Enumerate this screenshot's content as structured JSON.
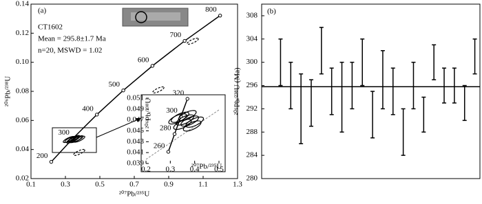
{
  "chart_data": [
    {
      "type": "concordia",
      "annotations": [
        "(a)",
        "CT1602",
        "Mean = 295.8±1.7 Ma",
        "n=20, MSWD = 1.02"
      ],
      "xlabel": "²⁰⁷Pb/²³⁵U",
      "ylabel": "²⁰⁶Pb/²³⁸U",
      "xlim": [
        0.1,
        1.3
      ],
      "xticks": [
        0.1,
        0.3,
        0.5,
        0.7,
        0.9,
        1.1,
        1.3
      ],
      "ylim": [
        0.02,
        0.14
      ],
      "yticks": [
        0.02,
        0.04,
        0.06,
        0.08,
        {
          "value": 0.1,
          "label": "0.10"
        },
        0.12,
        0.14
      ],
      "series": [
        {
          "x": [
            0.2177,
            0.3437,
            0.4828,
            0.6362,
            0.8056,
            0.9925,
            1.1987
          ],
          "y": [
            0.03151,
            0.04764,
            0.06402,
            0.08065,
            0.09754,
            0.1147,
            0.13213
          ],
          "labels": [
            200,
            300,
            400,
            500,
            600,
            700,
            800
          ],
          "color": "#000000",
          "line": true
        },
        {
          "x": [
            0.33,
            0.35,
            0.36,
            0.34,
            0.37,
            0.32,
            0.35,
            0.38
          ],
          "y": [
            0.047,
            0.0472,
            0.0468,
            0.0465,
            0.0474,
            0.0469,
            0.0476,
            0.0471
          ],
          "color": "#000000"
        },
        {
          "x": [
            0.84,
            1.04,
            0.38
          ],
          "y": [
            0.081,
            0.1145,
            0.038
          ],
          "color": "#000000",
          "dashed": true
        }
      ]
    },
    {
      "type": "concordia",
      "xlabel": "²⁰⁷Pb/²³⁵U",
      "ylabel": "²⁰⁶Pb/²³⁸U",
      "xlim": [
        0.2,
        0.5
      ],
      "xticks": [
        0.2,
        0.3,
        0.4,
        0.5
      ],
      "ylim": [
        0.039,
        0.051
      ],
      "yticks": [
        0.039,
        0.041,
        0.043,
        0.045,
        0.047,
        0.049,
        0.051
      ],
      "series": [
        {
          "x": [
            0.2918,
            0.3175,
            0.3437,
            0.3705
          ],
          "y": [
            0.04115,
            0.04441,
            0.04764,
            0.05089
          ],
          "labels": [
            260,
            280,
            300,
            320
          ],
          "color": "#000000",
          "line": true
        },
        {
          "x": [
            0.34,
            0.36,
            0.38,
            0.35,
            0.4,
            0.37,
            0.33,
            0.39
          ],
          "y": [
            0.0475,
            0.047,
            0.0468,
            0.0462,
            0.0466,
            0.0478,
            0.0472,
            0.0459
          ],
          "color": "#000000"
        }
      ]
    },
    {
      "type": "errorbar",
      "annotations": [
        "(b)"
      ],
      "ylabel": "²⁰⁶Pb/²³⁸U (Ma)",
      "ylim": [
        280,
        310
      ],
      "yticks": [
        280,
        284,
        288,
        292,
        296,
        300,
        304,
        308
      ],
      "mean": 295.8,
      "color": "#000000",
      "values": [
        300,
        296,
        292,
        293,
        302,
        295,
        294,
        296,
        300,
        291,
        297,
        295,
        288,
        296,
        291,
        300,
        296,
        296,
        293,
        301
      ],
      "errors": [
        4,
        4,
        6,
        4,
        4,
        4,
        6,
        4,
        4,
        4,
        5,
        4,
        4,
        4,
        3,
        3,
        3,
        3,
        3,
        3
      ]
    }
  ]
}
